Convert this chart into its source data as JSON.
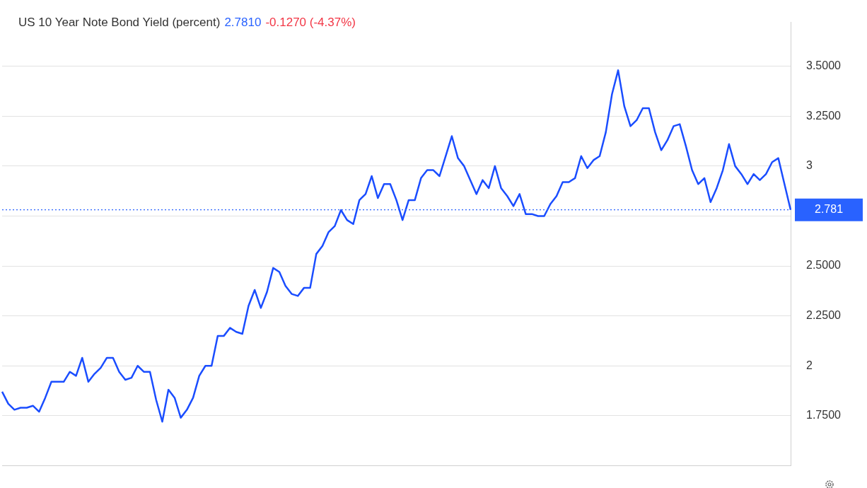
{
  "chart_data": {
    "type": "line",
    "title": "US 10 Year Note Bond Yield (percent)",
    "annotations": [
      "2.7810",
      "-0.1270 (-4.37%)"
    ],
    "categories": [
      null,
      null,
      null,
      null,
      null,
      null,
      null,
      null,
      null,
      null,
      null,
      null,
      null,
      null,
      null,
      null,
      null,
      null,
      null,
      null,
      null,
      null,
      null,
      null,
      null,
      null,
      null,
      null,
      null,
      null,
      null,
      null,
      null,
      null,
      null,
      null,
      null,
      null,
      null,
      null,
      null,
      null,
      null,
      null,
      null,
      null,
      null,
      null,
      null,
      null,
      null,
      null,
      null,
      null,
      null,
      null,
      null,
      null,
      null,
      null,
      null,
      null,
      null,
      null,
      null,
      null,
      null,
      null,
      null,
      null,
      null,
      null,
      null,
      null,
      null,
      null,
      null,
      null,
      null,
      null,
      null,
      null,
      null,
      null,
      null,
      null,
      null,
      null,
      null,
      null,
      null,
      null,
      null,
      null,
      null,
      null,
      null,
      null,
      null,
      null,
      null,
      null,
      null,
      null,
      null,
      null,
      null,
      null,
      null,
      null,
      null,
      null,
      null,
      null,
      null,
      null,
      null,
      null,
      null,
      null,
      null,
      null,
      null,
      null,
      null,
      null,
      null,
      null,
      null
    ],
    "series": [
      {
        "color": "#1a4dff",
        "values": [
          1.87,
          1.81,
          1.78,
          1.79,
          1.79,
          1.8,
          1.77,
          1.84,
          1.92,
          1.92,
          1.92,
          1.97,
          1.95,
          2.04,
          1.92,
          1.96,
          1.99,
          2.04,
          2.04,
          1.97,
          1.93,
          1.94,
          2.0,
          1.97,
          1.97,
          1.83,
          1.72,
          1.88,
          1.84,
          1.74,
          1.78,
          1.84,
          1.95,
          2.0,
          2.0,
          2.15,
          2.15,
          2.19,
          2.17,
          2.16,
          2.3,
          2.38,
          2.29,
          2.37,
          2.49,
          2.47,
          2.4,
          2.36,
          2.35,
          2.39,
          2.39,
          2.56,
          2.6,
          2.67,
          2.7,
          2.78,
          2.73,
          2.71,
          2.83,
          2.86,
          2.95,
          2.84,
          2.91,
          2.91,
          2.83,
          2.73,
          2.83,
          2.83,
          2.94,
          2.98,
          2.98,
          2.95,
          3.05,
          3.15,
          3.04,
          3.0,
          2.93,
          2.86,
          2.93,
          2.89,
          3.0,
          2.89,
          2.85,
          2.8,
          2.86,
          2.76,
          2.76,
          2.75,
          2.75,
          2.81,
          2.85,
          2.92,
          2.92,
          2.94,
          3.05,
          2.99,
          3.03,
          3.05,
          3.17,
          3.36,
          3.48,
          3.3,
          3.2,
          3.23,
          3.29,
          3.29,
          3.17,
          3.08,
          3.13,
          3.2,
          3.21,
          3.1,
          2.98,
          2.91,
          2.94,
          2.82,
          2.89,
          2.98,
          3.11,
          3.0,
          2.96,
          2.91,
          2.96,
          2.93,
          2.96,
          3.02,
          3.04,
          2.91,
          2.781
        ]
      }
    ],
    "ylim": [
      1.5,
      3.72
    ],
    "yticks": [
      {
        "value": 1.75,
        "label": "1.7500"
      },
      2,
      {
        "value": 2.25,
        "label": "2.2500"
      },
      {
        "value": 2.5,
        "label": "2.5000"
      },
      {
        "value": 2.75,
        "label": null
      },
      3,
      {
        "value": 3.25,
        "label": "3.2500"
      },
      {
        "value": 3.5,
        "label": "3.5000"
      }
    ],
    "tick_labels": "y",
    "grid": "y",
    "legend": false,
    "marker": "none",
    "line_style": "solid",
    "ref_lines": [
      {
        "axis": "y",
        "value": 2.781,
        "label": "2.781",
        "color": "#2962ff",
        "line_style": "dotted"
      }
    ]
  }
}
